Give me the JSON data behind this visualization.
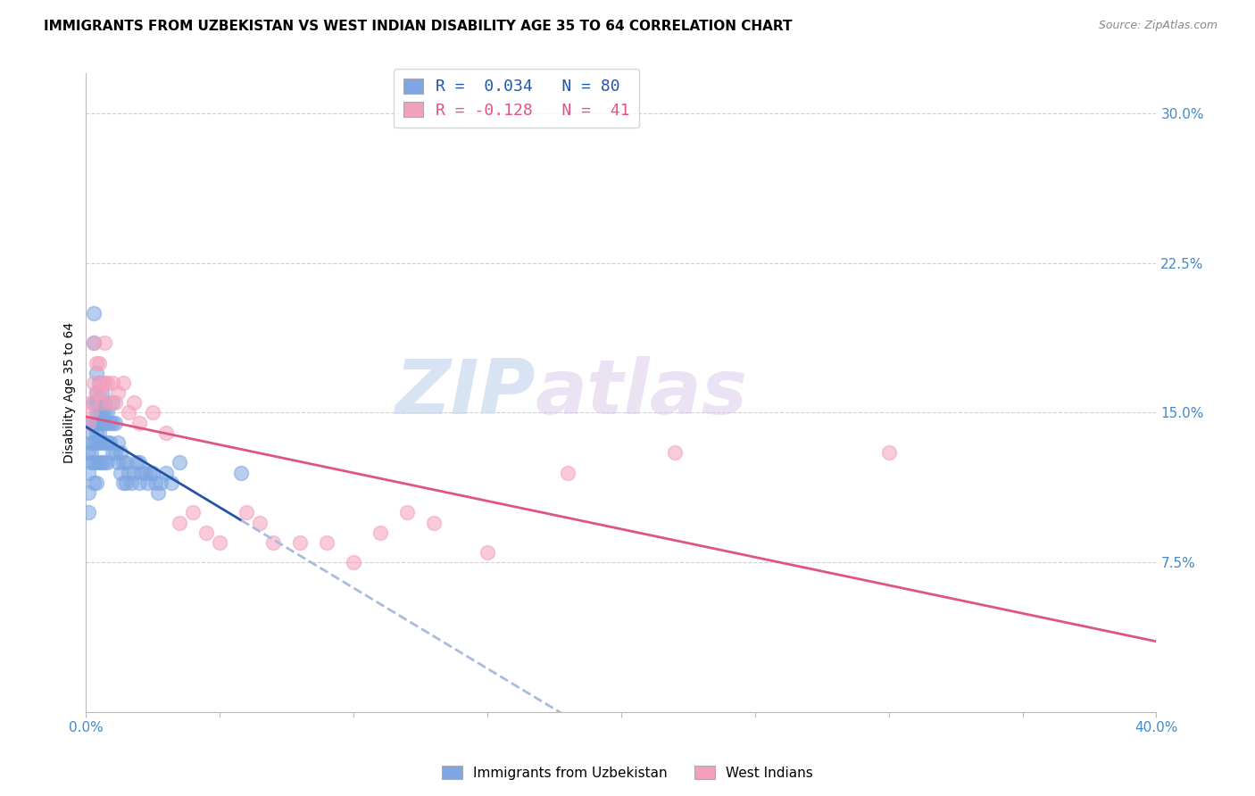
{
  "title": "IMMIGRANTS FROM UZBEKISTAN VS WEST INDIAN DISABILITY AGE 35 TO 64 CORRELATION CHART",
  "source": "Source: ZipAtlas.com",
  "ylabel": "Disability Age 35 to 64",
  "xlim": [
    0.0,
    0.4
  ],
  "ylim": [
    0.0,
    0.32
  ],
  "xticks": [
    0.0,
    0.05,
    0.1,
    0.15,
    0.2,
    0.25,
    0.3,
    0.35,
    0.4
  ],
  "xticklabels": [
    "0.0%",
    "",
    "",
    "",
    "",
    "",
    "",
    "",
    "40.0%"
  ],
  "yticks": [
    0.0,
    0.075,
    0.15,
    0.225,
    0.3
  ],
  "yticklabels": [
    "",
    "7.5%",
    "15.0%",
    "22.5%",
    "30.0%"
  ],
  "watermark_zip": "ZIP",
  "watermark_atlas": "atlas",
  "series1_label": "Immigrants from Uzbekistan",
  "series2_label": "West Indians",
  "series1_color": "#7da7e2",
  "series2_color": "#f4a0bc",
  "series1_line_color": "#2255aa",
  "series2_line_color": "#e05580",
  "dash_color": "#aabbdd",
  "background_color": "#ffffff",
  "grid_color": "#d0d0d0",
  "title_fontsize": 11,
  "axis_label_fontsize": 10,
  "tick_fontsize": 11,
  "legend_text1": "R =  0.034   N = 80",
  "legend_text2": "R = -0.128   N =  41",
  "legend_color1": "#2255aa",
  "legend_color2": "#e05580",
  "series1_x": [
    0.001,
    0.001,
    0.001,
    0.001,
    0.002,
    0.002,
    0.002,
    0.002,
    0.002,
    0.003,
    0.003,
    0.003,
    0.003,
    0.003,
    0.003,
    0.003,
    0.004,
    0.004,
    0.004,
    0.004,
    0.004,
    0.004,
    0.004,
    0.004,
    0.004,
    0.005,
    0.005,
    0.005,
    0.005,
    0.005,
    0.005,
    0.005,
    0.006,
    0.006,
    0.006,
    0.006,
    0.006,
    0.006,
    0.007,
    0.007,
    0.007,
    0.007,
    0.007,
    0.008,
    0.008,
    0.008,
    0.008,
    0.009,
    0.009,
    0.01,
    0.01,
    0.01,
    0.011,
    0.011,
    0.012,
    0.012,
    0.013,
    0.013,
    0.014,
    0.014,
    0.015,
    0.015,
    0.016,
    0.017,
    0.018,
    0.019,
    0.02,
    0.02,
    0.021,
    0.022,
    0.023,
    0.024,
    0.025,
    0.026,
    0.027,
    0.028,
    0.03,
    0.032,
    0.035,
    0.058
  ],
  "series1_y": [
    0.13,
    0.12,
    0.11,
    0.1,
    0.145,
    0.14,
    0.135,
    0.13,
    0.125,
    0.2,
    0.185,
    0.155,
    0.145,
    0.135,
    0.125,
    0.115,
    0.17,
    0.16,
    0.155,
    0.15,
    0.145,
    0.14,
    0.135,
    0.125,
    0.115,
    0.165,
    0.155,
    0.15,
    0.145,
    0.14,
    0.135,
    0.125,
    0.16,
    0.155,
    0.15,
    0.145,
    0.135,
    0.125,
    0.155,
    0.15,
    0.145,
    0.135,
    0.125,
    0.15,
    0.145,
    0.135,
    0.125,
    0.145,
    0.135,
    0.155,
    0.145,
    0.13,
    0.145,
    0.13,
    0.135,
    0.125,
    0.13,
    0.12,
    0.125,
    0.115,
    0.125,
    0.115,
    0.12,
    0.115,
    0.12,
    0.125,
    0.125,
    0.115,
    0.12,
    0.12,
    0.115,
    0.12,
    0.12,
    0.115,
    0.11,
    0.115,
    0.12,
    0.115,
    0.125,
    0.12
  ],
  "series2_x": [
    0.001,
    0.002,
    0.002,
    0.003,
    0.003,
    0.004,
    0.004,
    0.005,
    0.005,
    0.006,
    0.006,
    0.007,
    0.007,
    0.008,
    0.009,
    0.01,
    0.011,
    0.012,
    0.014,
    0.016,
    0.018,
    0.02,
    0.025,
    0.03,
    0.035,
    0.04,
    0.045,
    0.05,
    0.06,
    0.065,
    0.07,
    0.08,
    0.09,
    0.1,
    0.11,
    0.12,
    0.13,
    0.15,
    0.18,
    0.22,
    0.3
  ],
  "series2_y": [
    0.145,
    0.155,
    0.15,
    0.185,
    0.165,
    0.175,
    0.16,
    0.175,
    0.16,
    0.165,
    0.155,
    0.185,
    0.165,
    0.165,
    0.155,
    0.165,
    0.155,
    0.16,
    0.165,
    0.15,
    0.155,
    0.145,
    0.15,
    0.14,
    0.095,
    0.1,
    0.09,
    0.085,
    0.1,
    0.095,
    0.085,
    0.085,
    0.085,
    0.075,
    0.09,
    0.1,
    0.095,
    0.08,
    0.12,
    0.13,
    0.13
  ]
}
